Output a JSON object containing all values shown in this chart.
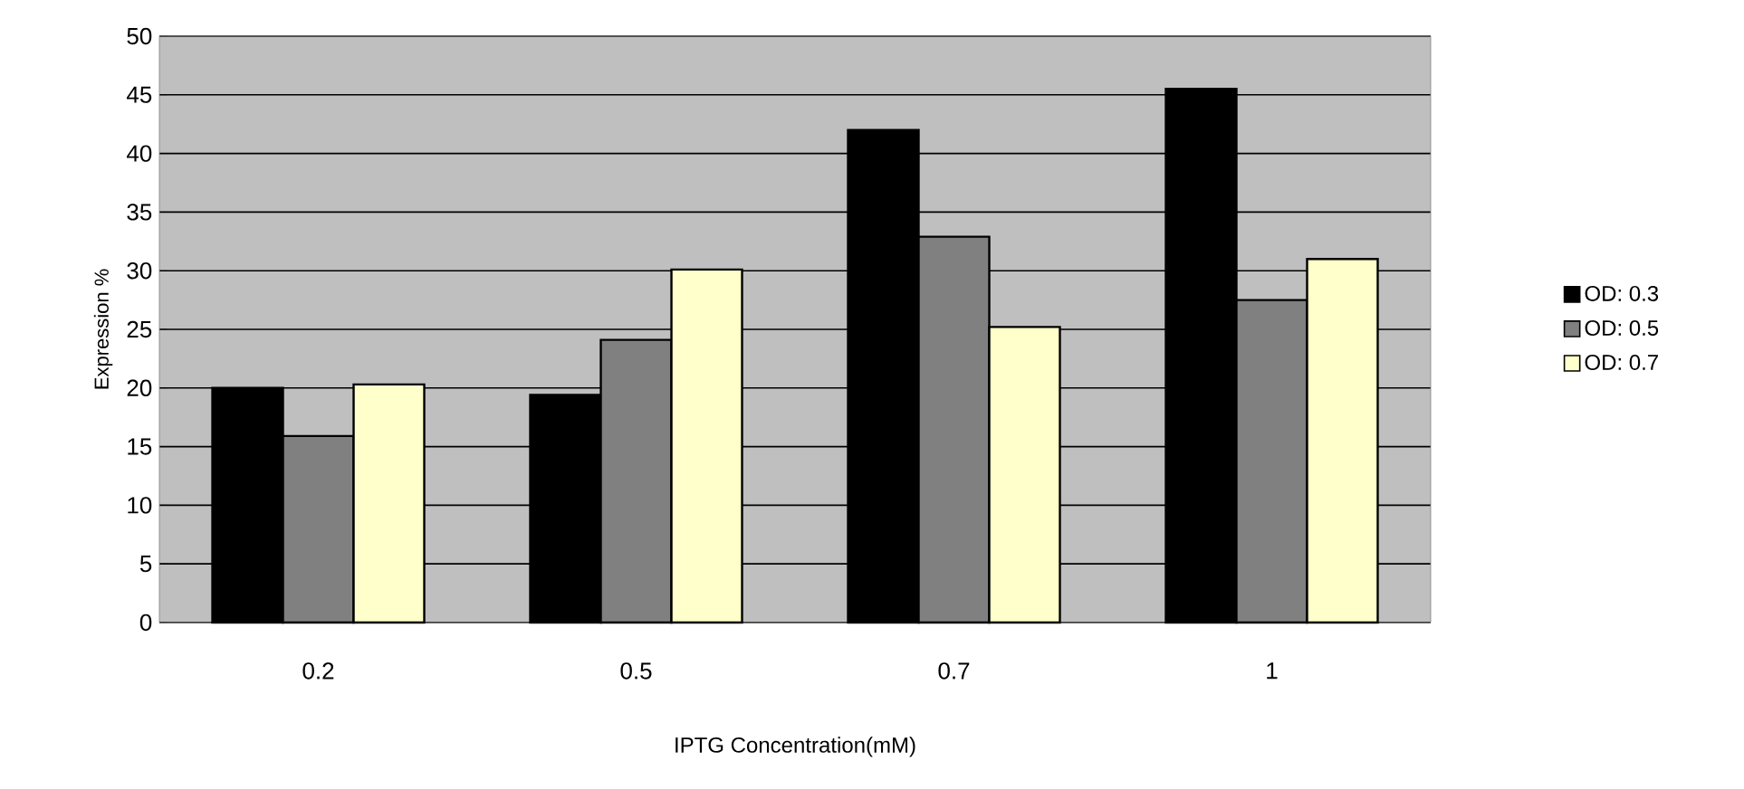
{
  "chart_data": {
    "type": "bar",
    "xlabel": "IPTG Concentration(mM)",
    "ylabel": "Expression %",
    "categories": [
      "0.2",
      "0.5",
      "0.7",
      "1"
    ],
    "series": [
      {
        "name": "OD: 0.3",
        "color": "#000000",
        "values": [
          20,
          19.4,
          42,
          45.5
        ]
      },
      {
        "name": "OD: 0.5",
        "color": "#808080",
        "values": [
          15.9,
          24.1,
          32.9,
          27.5
        ]
      },
      {
        "name": "OD: 0.7",
        "color": "#ffffcc",
        "values": [
          20.3,
          30.1,
          25.2,
          31
        ]
      }
    ],
    "ylim": [
      0,
      50
    ],
    "yticks": [
      0,
      5,
      10,
      15,
      20,
      25,
      30,
      35,
      40,
      45,
      50
    ],
    "grid": "y",
    "legend": "right"
  }
}
